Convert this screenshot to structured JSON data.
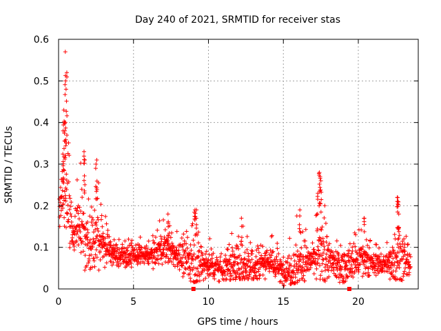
{
  "chart_data": {
    "type": "scatter",
    "title": "Day 240 of 2021, SRMTID for receiver stas",
    "xlabel": "GPS time / hours",
    "ylabel": "SRMTID / TECUs",
    "xlim": [
      0,
      24
    ],
    "ylim": [
      0,
      0.6
    ],
    "grid": true,
    "x_ticks": [
      0,
      5,
      10,
      15,
      20
    ],
    "x_tick_labels": [
      "0",
      "5",
      "10",
      "15",
      "20"
    ],
    "y_ticks": [
      0,
      0.1,
      0.2,
      0.3,
      0.4,
      0.5,
      0.6
    ],
    "y_tick_labels": [
      "0",
      "0.1",
      "0.2",
      "0.3",
      "0.4",
      "0.5",
      "0.6"
    ],
    "marker": "plus",
    "color": "#ff0000",
    "gap_markers_x": [
      9.0,
      19.4
    ],
    "envelope": [
      [
        0.0,
        0.16,
        0.08,
        0.26
      ],
      [
        0.3,
        0.25,
        0.14,
        0.43
      ],
      [
        0.5,
        0.27,
        0.12,
        0.57
      ],
      [
        0.8,
        0.15,
        0.06,
        0.3
      ],
      [
        1.0,
        0.13,
        0.06,
        0.22
      ],
      [
        1.5,
        0.17,
        0.06,
        0.33
      ],
      [
        2.0,
        0.1,
        0.03,
        0.22
      ],
      [
        2.5,
        0.13,
        0.05,
        0.31
      ],
      [
        3.0,
        0.11,
        0.04,
        0.2
      ],
      [
        3.5,
        0.09,
        0.04,
        0.15
      ],
      [
        4.0,
        0.08,
        0.05,
        0.14
      ],
      [
        5.0,
        0.08,
        0.04,
        0.13
      ],
      [
        6.0,
        0.08,
        0.04,
        0.12
      ],
      [
        7.0,
        0.1,
        0.05,
        0.18
      ],
      [
        8.0,
        0.08,
        0.04,
        0.14
      ],
      [
        9.0,
        0.06,
        0.02,
        0.19
      ],
      [
        10.0,
        0.06,
        0.03,
        0.13
      ],
      [
        11.0,
        0.05,
        0.02,
        0.11
      ],
      [
        12.0,
        0.06,
        0.03,
        0.17
      ],
      [
        13.0,
        0.06,
        0.03,
        0.16
      ],
      [
        14.0,
        0.07,
        0.03,
        0.14
      ],
      [
        15.0,
        0.04,
        0.01,
        0.1
      ],
      [
        16.0,
        0.06,
        0.02,
        0.19
      ],
      [
        17.0,
        0.07,
        0.03,
        0.13
      ],
      [
        17.4,
        0.08,
        0.03,
        0.28
      ],
      [
        18.0,
        0.07,
        0.02,
        0.15
      ],
      [
        19.0,
        0.05,
        0.02,
        0.12
      ],
      [
        20.0,
        0.07,
        0.03,
        0.17
      ],
      [
        21.0,
        0.06,
        0.02,
        0.11
      ],
      [
        22.0,
        0.06,
        0.02,
        0.12
      ],
      [
        22.6,
        0.08,
        0.03,
        0.22
      ],
      [
        23.5,
        0.05,
        0.02,
        0.1
      ]
    ],
    "spikes": [
      [
        0.45,
        0.57
      ],
      [
        0.55,
        0.52
      ],
      [
        0.5,
        0.48
      ],
      [
        0.35,
        0.43
      ],
      [
        0.4,
        0.4
      ],
      [
        0.3,
        0.38
      ],
      [
        1.7,
        0.33
      ],
      [
        1.75,
        0.31
      ],
      [
        2.55,
        0.31
      ],
      [
        2.5,
        0.3
      ],
      [
        9.1,
        0.19
      ],
      [
        9.2,
        0.19
      ],
      [
        16.1,
        0.19
      ],
      [
        17.4,
        0.28
      ],
      [
        17.45,
        0.27
      ],
      [
        17.5,
        0.26
      ],
      [
        17.3,
        0.23
      ],
      [
        22.6,
        0.22
      ],
      [
        22.65,
        0.21
      ],
      [
        22.7,
        0.18
      ],
      [
        7.3,
        0.18
      ],
      [
        12.2,
        0.17
      ],
      [
        20.4,
        0.17
      ]
    ],
    "n_points": 1800
  }
}
